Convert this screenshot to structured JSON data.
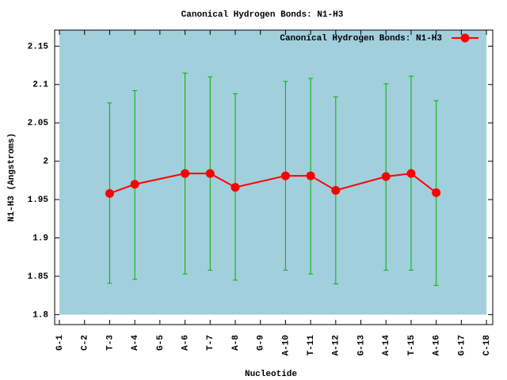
{
  "chart_data": {
    "type": "line",
    "title": "Canonical Hydrogen Bonds: N1-H3",
    "x_label": "Nucleotide",
    "y_label": "N1-H3 (Angstroms)",
    "xlim": [
      0.81,
      18.25
    ],
    "ylim": [
      1.787,
      2.171
    ],
    "xticks": [
      {
        "value": 1,
        "label": "G-1"
      },
      {
        "value": 2,
        "label": "C-2"
      },
      {
        "value": 3,
        "label": "T-3"
      },
      {
        "value": 4,
        "label": "A-4"
      },
      {
        "value": 5,
        "label": "G-5"
      },
      {
        "value": 6,
        "label": "A-6"
      },
      {
        "value": 7,
        "label": "T-7"
      },
      {
        "value": 8,
        "label": "A-8"
      },
      {
        "value": 9,
        "label": "G-9"
      },
      {
        "value": 10,
        "label": "A-10"
      },
      {
        "value": 11,
        "label": "T-11"
      },
      {
        "value": 12,
        "label": "A-12"
      },
      {
        "value": 13,
        "label": "G-13"
      },
      {
        "value": 14,
        "label": "A-14"
      },
      {
        "value": 15,
        "label": "T-15"
      },
      {
        "value": 16,
        "label": "A-16"
      },
      {
        "value": 17,
        "label": "G-17"
      },
      {
        "value": 18,
        "label": "C-18"
      }
    ],
    "yticks": [
      1.8,
      1.85,
      1.9,
      1.95,
      2,
      2.05,
      2.1,
      2.15
    ],
    "background": "#a2cfdc",
    "legend_position": "top-right",
    "series": [
      {
        "name": "Canonical Hydrogen Bonds: N1-H3",
        "color": "#ff0000",
        "error_color": "#00b000",
        "x": [
          3,
          4,
          6,
          7,
          8,
          10,
          11,
          12,
          14,
          15,
          16
        ],
        "values": [
          1.958,
          1.97,
          1.984,
          1.984,
          1.966,
          1.981,
          1.981,
          1.962,
          1.98,
          1.984,
          1.959
        ],
        "low": [
          1.841,
          1.846,
          1.853,
          1.858,
          1.845,
          1.858,
          1.853,
          1.84,
          1.858,
          1.858,
          1.838
        ],
        "high": [
          2.076,
          2.092,
          2.115,
          2.11,
          2.088,
          2.104,
          2.108,
          2.084,
          2.101,
          2.111,
          2.079
        ]
      }
    ]
  }
}
